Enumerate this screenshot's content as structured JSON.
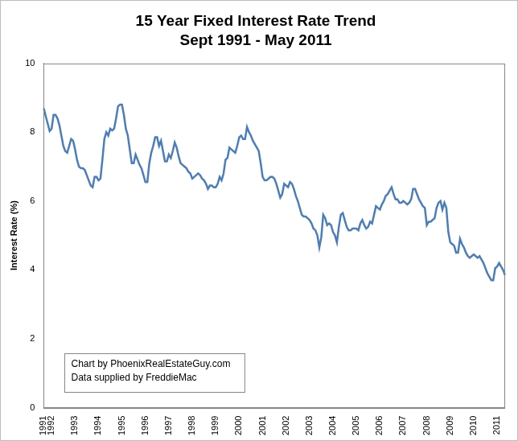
{
  "chart_data": {
    "type": "line",
    "title": "15 Year Fixed Interest Rate Trend",
    "subtitle": "Sept 1991 - May 2011",
    "y_label": "Interest Rate (%)",
    "annotations": [
      "Chart by PhoenixRealEstateGuy.com",
      "Data supplied by FreddieMac"
    ],
    "categories": [
      "1991",
      null,
      null,
      null,
      "1992",
      null,
      null,
      null,
      null,
      null,
      null,
      null,
      null,
      null,
      null,
      null,
      "1993",
      null,
      null,
      null,
      null,
      null,
      null,
      null,
      null,
      null,
      null,
      null,
      "1994",
      null,
      null,
      null,
      null,
      null,
      null,
      null,
      null,
      null,
      null,
      null,
      "1995",
      null,
      null,
      null,
      null,
      null,
      null,
      null,
      null,
      null,
      null,
      null,
      "1996",
      null,
      null,
      null,
      null,
      null,
      null,
      null,
      null,
      null,
      null,
      null,
      "1997",
      null,
      null,
      null,
      null,
      null,
      null,
      null,
      null,
      null,
      null,
      null,
      "1998",
      null,
      null,
      null,
      null,
      null,
      null,
      null,
      null,
      null,
      null,
      null,
      "1999",
      null,
      null,
      null,
      null,
      null,
      null,
      null,
      null,
      null,
      null,
      null,
      "2000",
      null,
      null,
      null,
      null,
      null,
      null,
      null,
      null,
      null,
      null,
      null,
      "2001",
      null,
      null,
      null,
      null,
      null,
      null,
      null,
      null,
      null,
      null,
      null,
      "2002",
      null,
      null,
      null,
      null,
      null,
      null,
      null,
      null,
      null,
      null,
      null,
      "2003",
      null,
      null,
      null,
      null,
      null,
      null,
      null,
      null,
      null,
      null,
      null,
      "2004",
      null,
      null,
      null,
      null,
      null,
      null,
      null,
      null,
      null,
      null,
      null,
      "2005",
      null,
      null,
      null,
      null,
      null,
      null,
      null,
      null,
      null,
      null,
      null,
      "2006",
      null,
      null,
      null,
      null,
      null,
      null,
      null,
      null,
      null,
      null,
      null,
      "2007",
      null,
      null,
      null,
      null,
      null,
      null,
      null,
      null,
      null,
      null,
      null,
      "2008",
      null,
      null,
      null,
      null,
      null,
      null,
      null,
      null,
      null,
      null,
      null,
      "2009",
      null,
      null,
      null,
      null,
      null,
      null,
      null,
      null,
      null,
      null,
      null,
      "2010",
      null,
      null,
      null,
      null,
      null,
      null,
      null,
      null,
      null,
      null,
      null,
      "2011",
      null,
      null,
      null,
      null
    ],
    "values": [
      8.69,
      8.46,
      8.25,
      8.03,
      8.1,
      8.5,
      8.5,
      8.4,
      8.2,
      7.9,
      7.6,
      7.45,
      7.4,
      7.6,
      7.8,
      7.75,
      7.5,
      7.2,
      7.0,
      6.95,
      6.95,
      6.9,
      6.75,
      6.6,
      6.45,
      6.4,
      6.7,
      6.7,
      6.6,
      6.65,
      7.2,
      7.8,
      8.0,
      7.9,
      8.1,
      8.05,
      8.1,
      8.4,
      8.75,
      8.8,
      8.8,
      8.5,
      8.1,
      7.9,
      7.5,
      7.1,
      7.1,
      7.35,
      7.2,
      7.05,
      6.95,
      6.75,
      6.55,
      6.55,
      7.1,
      7.4,
      7.6,
      7.85,
      7.85,
      7.6,
      7.75,
      7.45,
      7.15,
      7.15,
      7.35,
      7.25,
      7.45,
      7.7,
      7.55,
      7.3,
      7.1,
      7.05,
      7.0,
      6.95,
      6.85,
      6.8,
      6.65,
      6.7,
      6.75,
      6.8,
      6.75,
      6.65,
      6.6,
      6.5,
      6.35,
      6.45,
      6.45,
      6.4,
      6.4,
      6.5,
      6.7,
      6.6,
      6.8,
      7.2,
      7.25,
      7.55,
      7.5,
      7.45,
      7.4,
      7.6,
      7.85,
      7.9,
      7.8,
      7.8,
      8.15,
      8.0,
      7.9,
      7.75,
      7.65,
      7.55,
      7.45,
      7.1,
      6.7,
      6.6,
      6.6,
      6.65,
      6.7,
      6.7,
      6.65,
      6.5,
      6.3,
      6.1,
      6.2,
      6.5,
      6.45,
      6.4,
      6.55,
      6.5,
      6.35,
      6.15,
      6.0,
      5.8,
      5.6,
      5.55,
      5.55,
      5.5,
      5.45,
      5.35,
      5.2,
      5.15,
      5.0,
      4.65,
      4.95,
      5.6,
      5.5,
      5.3,
      5.35,
      5.3,
      5.1,
      5.0,
      4.8,
      5.25,
      5.6,
      5.65,
      5.45,
      5.25,
      5.15,
      5.15,
      5.2,
      5.2,
      5.2,
      5.15,
      5.35,
      5.45,
      5.3,
      5.2,
      5.25,
      5.4,
      5.35,
      5.6,
      5.85,
      5.8,
      5.75,
      5.9,
      6.0,
      6.15,
      6.2,
      6.3,
      6.4,
      6.2,
      6.05,
      6.05,
      5.95,
      5.95,
      6.0,
      5.95,
      5.9,
      5.95,
      6.05,
      6.35,
      6.35,
      6.2,
      6.05,
      5.95,
      5.85,
      5.8,
      5.3,
      5.4,
      5.4,
      5.45,
      5.5,
      5.8,
      5.95,
      6.0,
      5.75,
      5.95,
      5.8,
      5.1,
      4.8,
      4.75,
      4.7,
      4.5,
      4.5,
      4.9,
      4.75,
      4.65,
      4.5,
      4.4,
      4.35,
      4.4,
      4.45,
      4.4,
      4.35,
      4.4,
      4.3,
      4.2,
      4.05,
      3.9,
      3.8,
      3.7,
      3.7,
      4.05,
      4.1,
      4.2,
      4.1,
      4.0,
      3.85
    ],
    "color": "#4a7ebb",
    "ylim": [
      0,
      10
    ],
    "yticks": [
      0,
      2,
      4,
      6,
      8,
      10
    ],
    "grid": false
  }
}
